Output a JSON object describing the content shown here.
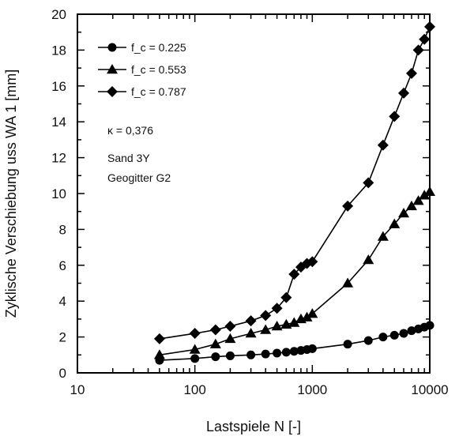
{
  "chart_data": {
    "type": "line",
    "xlabel": "Lastspiele N [-]",
    "ylabel": "Zyklische Verschiebung uss WA 1 [mm]",
    "x_scale": "log",
    "xlim": [
      10,
      10000
    ],
    "ylim": [
      0,
      20
    ],
    "x_ticks": [
      10,
      100,
      1000,
      10000
    ],
    "x_tick_labels": [
      "10",
      "100",
      "1000",
      "10000"
    ],
    "y_ticks": [
      0,
      2,
      4,
      6,
      8,
      10,
      12,
      14,
      16,
      18,
      20
    ],
    "y_tick_labels": [
      "0",
      "2",
      "4",
      "6",
      "8",
      "10",
      "12",
      "14",
      "16",
      "18",
      "20"
    ],
    "grid": false,
    "legend_position": "top-left",
    "series": [
      {
        "name": "f_c = 0.225",
        "marker": "circle",
        "color": "#000000",
        "x": [
          50,
          100,
          150,
          200,
          300,
          400,
          500,
          600,
          700,
          800,
          900,
          1000,
          2000,
          3000,
          4000,
          5000,
          6000,
          7000,
          8000,
          9000,
          10000
        ],
        "y": [
          0.7,
          0.8,
          0.9,
          0.95,
          1.0,
          1.05,
          1.1,
          1.15,
          1.2,
          1.25,
          1.3,
          1.35,
          1.6,
          1.8,
          2.0,
          2.1,
          2.2,
          2.35,
          2.45,
          2.55,
          2.65
        ]
      },
      {
        "name": "f_c = 0.553",
        "marker": "triangle",
        "color": "#000000",
        "x": [
          50,
          100,
          150,
          200,
          300,
          400,
          500,
          600,
          700,
          800,
          900,
          1000,
          2000,
          3000,
          4000,
          5000,
          6000,
          7000,
          8000,
          9000,
          10000
        ],
        "y": [
          1.0,
          1.3,
          1.6,
          1.9,
          2.2,
          2.4,
          2.6,
          2.7,
          2.8,
          3.0,
          3.1,
          3.3,
          5.0,
          6.3,
          7.6,
          8.3,
          8.9,
          9.3,
          9.6,
          9.9,
          10.1
        ]
      },
      {
        "name": "f_c = 0.787",
        "marker": "diamond",
        "color": "#000000",
        "x": [
          50,
          100,
          150,
          200,
          300,
          400,
          500,
          600,
          700,
          800,
          900,
          1000,
          2000,
          3000,
          4000,
          5000,
          6000,
          7000,
          8000,
          9000,
          10000
        ],
        "y": [
          1.9,
          2.2,
          2.4,
          2.6,
          2.9,
          3.2,
          3.6,
          4.2,
          5.5,
          5.9,
          6.1,
          6.2,
          9.3,
          10.6,
          12.7,
          14.3,
          15.6,
          16.7,
          18.0,
          18.6,
          19.3
        ]
      }
    ],
    "legend": [
      {
        "label": "f_c = 0.225",
        "marker": "circle"
      },
      {
        "label": "f_c = 0.553",
        "marker": "triangle"
      },
      {
        "label": "f_c = 0.787",
        "marker": "diamond"
      }
    ],
    "annotations": [
      "κ = 0,376",
      "Sand 3Y",
      "Geogitter G2"
    ]
  }
}
